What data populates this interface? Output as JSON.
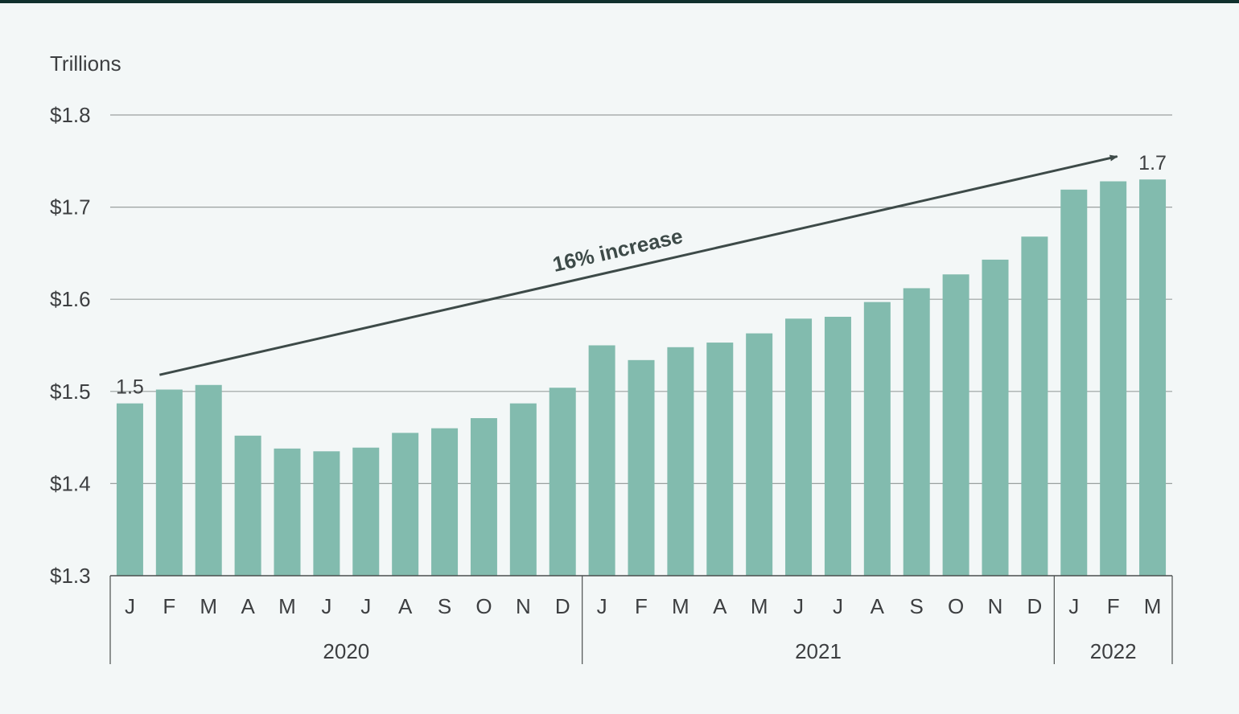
{
  "chart_data": {
    "type": "bar",
    "ylabel": "Trillions",
    "ylim": [
      1.3,
      1.8
    ],
    "yticks": [
      {
        "value": 1.8,
        "label": "$1.8"
      },
      {
        "value": 1.7,
        "label": "$1.7"
      },
      {
        "value": 1.6,
        "label": "$1.6"
      },
      {
        "value": 1.5,
        "label": "$1.5"
      },
      {
        "value": 1.4,
        "label": "$1.4"
      },
      {
        "value": 1.3,
        "label": "$1.3"
      }
    ],
    "grid": true,
    "bar_color": "#82bbae",
    "categories": [
      "J",
      "F",
      "M",
      "A",
      "M",
      "J",
      "J",
      "A",
      "S",
      "O",
      "N",
      "D",
      "J",
      "F",
      "M",
      "A",
      "M",
      "J",
      "J",
      "A",
      "S",
      "O",
      "N",
      "D",
      "J",
      "F",
      "M"
    ],
    "values": [
      1.487,
      1.502,
      1.507,
      1.452,
      1.438,
      1.435,
      1.439,
      1.455,
      1.46,
      1.471,
      1.487,
      1.504,
      1.55,
      1.534,
      1.548,
      1.553,
      1.563,
      1.579,
      1.581,
      1.597,
      1.612,
      1.627,
      1.643,
      1.668,
      1.719,
      1.728,
      1.73
    ],
    "years": [
      {
        "label": "2020",
        "start": 0,
        "end": 11
      },
      {
        "label": "2021",
        "start": 12,
        "end": 23
      },
      {
        "label": "2022",
        "start": 24,
        "end": 26
      }
    ],
    "data_labels": [
      {
        "index": 0,
        "text": "1.5"
      },
      {
        "index": 26,
        "text": "1.7"
      }
    ],
    "annotation": {
      "text": "16% increase",
      "from_index": 1,
      "from_value": 1.518,
      "to_index": 25,
      "to_value": 1.755
    }
  }
}
